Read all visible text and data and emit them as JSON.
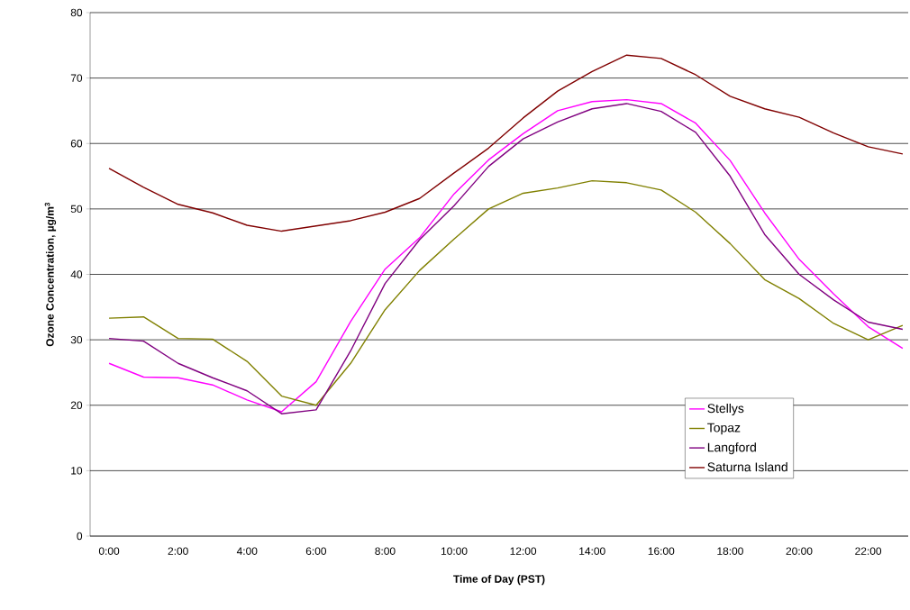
{
  "chart_data": {
    "type": "line",
    "xlabel": "Time of Day (PST)",
    "ylabel": "Ozone Concentration, µg/m$^{3}$",
    "categories": [
      "0:00",
      null,
      "2:00",
      null,
      "4:00",
      null,
      "6:00",
      null,
      "8:00",
      null,
      "10:00",
      null,
      "12:00",
      null,
      "14:00",
      null,
      "16:00",
      null,
      "18:00",
      null,
      "20:00",
      null,
      "22:00",
      null
    ],
    "series": [
      {
        "name": "Stellys",
        "color": "#ff00ff",
        "values": [
          26.4,
          24.3,
          24.2,
          23.1,
          20.8,
          19.0,
          23.6,
          32.8,
          40.8,
          45.6,
          52.3,
          57.5,
          61.5,
          65.0,
          66.4,
          66.7,
          66.1,
          63.1,
          57.4,
          49.4,
          42.3,
          37.0,
          32.0,
          28.7
        ]
      },
      {
        "name": "Topaz",
        "color": "#808000",
        "values": [
          33.3,
          33.5,
          30.2,
          30.1,
          26.7,
          21.4,
          20.0,
          26.4,
          34.6,
          40.6,
          45.4,
          50.0,
          52.4,
          53.2,
          54.3,
          54.0,
          52.9,
          49.5,
          44.7,
          39.2,
          36.3,
          32.5,
          30.0,
          32.2
        ]
      },
      {
        "name": "Langford",
        "color": "#800080",
        "values": [
          30.2,
          29.8,
          26.4,
          24.2,
          22.2,
          18.7,
          19.3,
          28.3,
          38.6,
          45.3,
          50.5,
          56.5,
          60.7,
          63.3,
          65.3,
          66.1,
          64.9,
          61.7,
          55.0,
          46.1,
          40.0,
          36.1,
          32.7,
          31.6
        ]
      },
      {
        "name": "Saturna Island",
        "color": "#800000",
        "values": [
          56.2,
          53.3,
          50.7,
          49.4,
          47.5,
          46.6,
          47.4,
          48.2,
          49.5,
          51.6,
          55.5,
          59.3,
          63.9,
          68.0,
          71.0,
          73.5,
          73.0,
          70.5,
          67.2,
          65.3,
          64.0,
          61.6,
          59.5,
          58.4
        ]
      }
    ],
    "ylim": [
      0,
      80
    ],
    "yticks": [
      0,
      10,
      20,
      30,
      40,
      50,
      60,
      70,
      80
    ],
    "grid": "y",
    "legend": "bottom right",
    "marker": "none",
    "line_style": "solid"
  }
}
